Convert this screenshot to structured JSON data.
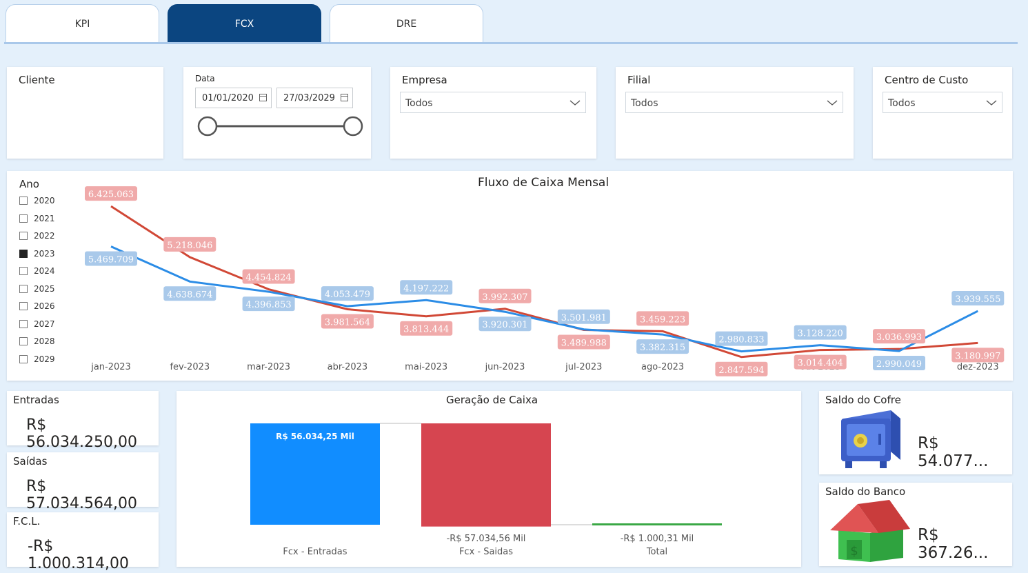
{
  "tabs": [
    {
      "label": "KPI",
      "active": false
    },
    {
      "label": "FCX",
      "active": true
    },
    {
      "label": "DRE",
      "active": false
    }
  ],
  "filters": {
    "cliente": {
      "title": "Cliente"
    },
    "data": {
      "title": "Data",
      "start": "01/01/2020",
      "end": "27/03/2029"
    },
    "empresa": {
      "title": "Empresa",
      "value": "Todos"
    },
    "filial": {
      "title": "Filial",
      "value": "Todos"
    },
    "centro": {
      "title": "Centro de Custo",
      "value": "Todos"
    }
  },
  "ano": {
    "title": "Ano",
    "years": [
      {
        "label": "2020",
        "checked": false
      },
      {
        "label": "2021",
        "checked": false
      },
      {
        "label": "2022",
        "checked": false
      },
      {
        "label": "2023",
        "checked": true
      },
      {
        "label": "2024",
        "checked": false
      },
      {
        "label": "2025",
        "checked": false
      },
      {
        "label": "2026",
        "checked": false
      },
      {
        "label": "2027",
        "checked": false
      },
      {
        "label": "2028",
        "checked": false
      },
      {
        "label": "2029",
        "checked": false
      }
    ]
  },
  "chart_data": [
    {
      "type": "line",
      "title": "Fluxo de Caixa Mensal",
      "categories": [
        "jan-2023",
        "fev-2023",
        "mar-2023",
        "abr-2023",
        "mai-2023",
        "jun-2023",
        "jul-2023",
        "ago-2023",
        "set-2023",
        "out-2023",
        "nov-2023",
        "dez-2023"
      ],
      "ylim": [
        2500000,
        7000000
      ],
      "series": [
        {
          "color": "#d14836",
          "label_bg": "#f0aaaa",
          "values": [
            6425063,
            5218046,
            4454824,
            3981564,
            3813444,
            3992307,
            3489988,
            3459223,
            2847594,
            3014404,
            3036993,
            3180997
          ],
          "labels": [
            "6.425.063",
            "5.218.046",
            "4.454.824",
            "3.981.564",
            "3.813.444",
            "3.992.307",
            "3.489.988",
            "3.459.223",
            "2.847.594",
            "3.014.404",
            "3.036.993",
            "3.180.997"
          ]
        },
        {
          "color": "#2b8ce6",
          "label_bg": "#a9c9ea",
          "values": [
            5469709,
            4638674,
            4396853,
            4053479,
            4197222,
            3920301,
            3501981,
            3382315,
            2980833,
            3128220,
            2990049,
            3939555
          ],
          "labels": [
            "5.469.709",
            "4.638.674",
            "4.396.853",
            "4.053.479",
            "4.197.222",
            "3.920.301",
            "3.501.981",
            "3.382.315",
            "2.980.833",
            "3.128.220",
            "2.990.049",
            "3.939.555"
          ]
        }
      ]
    },
    {
      "type": "bar",
      "title": "Geração de Caixa",
      "categories": [
        "Fcx - Entradas",
        "Fcx - Saidas",
        "Total"
      ],
      "values": [
        56034.25,
        -57034.56,
        -1000.31
      ],
      "labels": [
        "R$ 56.034,25 Mil",
        "-R$ 57.034,56 Mil",
        "-R$ 1.000,31 Mil"
      ],
      "colors": [
        "#118dff",
        "#d64550",
        "#3aa845"
      ]
    }
  ],
  "kpis": {
    "entradas": {
      "title": "Entradas",
      "value": "R$ 56.034.250,00"
    },
    "saidas": {
      "title": "Saídas",
      "value": "R$ 57.034.564,00"
    },
    "fcl": {
      "title": "F.C.L.",
      "value": "-R$ 1.000.314,00"
    }
  },
  "saldos": {
    "cofre": {
      "title": "Saldo do Cofre",
      "value": "R$ 54.077...",
      "icon": "safe-icon"
    },
    "banco": {
      "title": "Saldo do Banco",
      "value": "R$ 367.26...",
      "icon": "bank-house-icon"
    }
  }
}
